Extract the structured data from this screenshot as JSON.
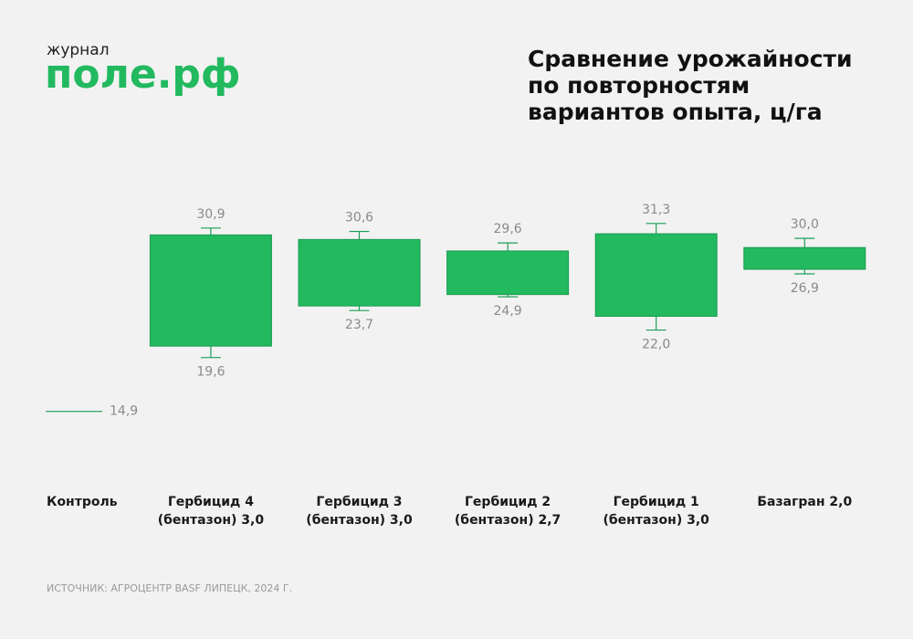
{
  "header": {
    "kicker": "журнал",
    "brand": "поле.рф"
  },
  "chart_data": {
    "type": "range-box",
    "title": "Сравнение урожайности по повторностям вариантов опыта, ц/га",
    "categories": [
      "Контроль",
      "Гербицид 4 (бентазон) 3,0",
      "Гербицид 3 (бентазон) 3,0",
      "Гербицид 2 (бентазон) 2,7",
      "Гербицид 1 (бентазон) 3,0",
      "Базагран 2,0"
    ],
    "max": [
      null,
      30.9,
      30.6,
      29.6,
      31.3,
      30.0
    ],
    "max_labels": [
      null,
      "30,9",
      "30,6",
      "29,6",
      "31,3",
      "30,0"
    ],
    "box_top": [
      null,
      30.3,
      29.9,
      28.9,
      30.4,
      29.2
    ],
    "box_bottom": [
      null,
      20.6,
      24.1,
      25.1,
      23.2,
      27.3
    ],
    "min": [
      null,
      19.6,
      23.7,
      24.9,
      22.0,
      26.9
    ],
    "min_labels": [
      null,
      "19,6",
      "23,7",
      "24,9",
      "22,0",
      "26,9"
    ],
    "reference_value": 14.9,
    "reference_label": "14,9",
    "ylim": [
      14,
      32
    ],
    "color": "#22b95f",
    "source": "ИСТОЧНИК: АГРОЦЕНТР BASF ЛИПЕЦК, 2024 Г."
  }
}
